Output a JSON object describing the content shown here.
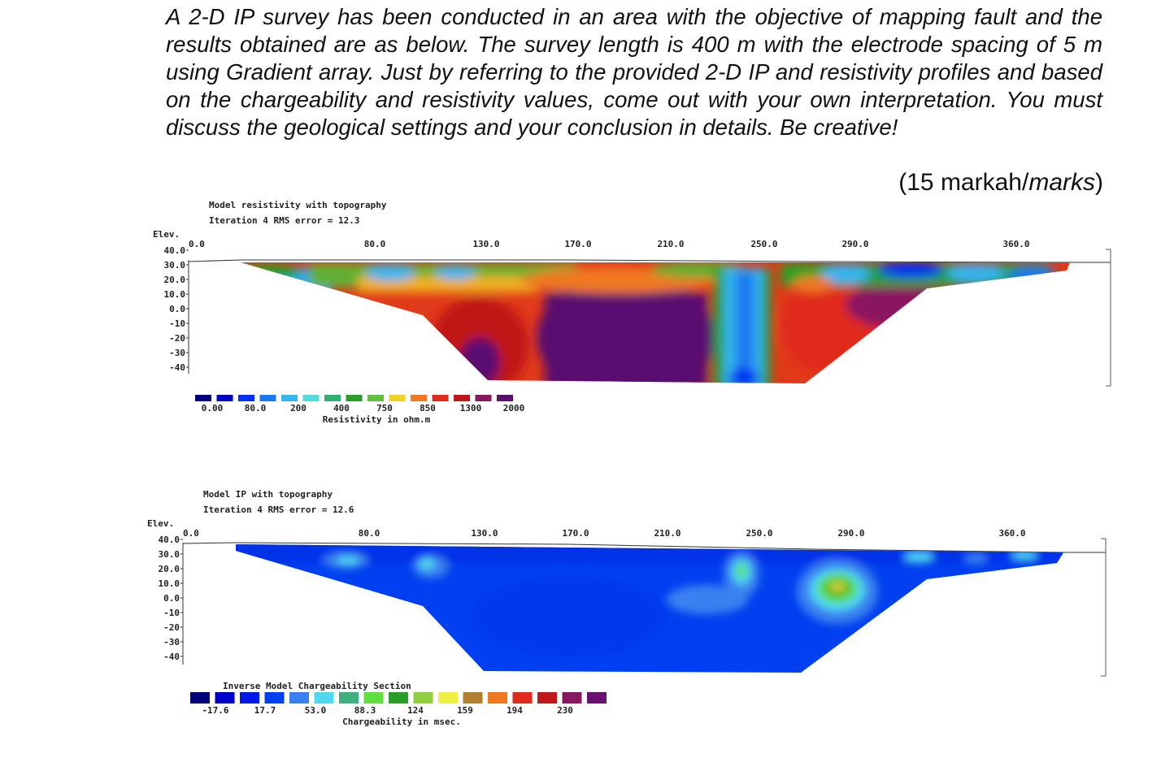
{
  "question": {
    "text": "A 2-D IP survey has been conducted in an area with the objective of mapping fault and the results obtained are as below. The survey length is 400 m with the electrode spacing of 5 m using Gradient array. Just by referring to the provided 2-D IP and resistivity profiles and based on the chargeability and resistivity values, come out with your own interpretation. You must discuss the geological settings and your conclusion in details. Be creative!",
    "marks_prefix": "(15 markah/",
    "marks_italic": "marks",
    "marks_suffix": ")"
  },
  "resistivity_section": {
    "title": "Model resistivity with topography",
    "iteration": "Iteration 4 RMS error = 12.3",
    "elev_label": "Elev.",
    "elev_ticks": [
      "40.0",
      "30.0",
      "20.0",
      "10.0",
      "0.0",
      "-10",
      "-20",
      "-30",
      "-40"
    ],
    "x_ticks": [
      "0.0",
      "80.0",
      "130.0",
      "170.0",
      "210.0",
      "250.0",
      "290.0",
      "360.0"
    ],
    "legend_values": [
      "0.00",
      "80.0",
      "200",
      "400",
      "750",
      "850",
      "1300",
      "2000"
    ],
    "legend_label": "Resistivity in ohm.m",
    "legend_colors": [
      "#00007a",
      "#0000c8",
      "#0030f0",
      "#1a78f0",
      "#34b4f0",
      "#50dcd8",
      "#30b070",
      "#28a028",
      "#60c040",
      "#f0d020",
      "#f07820",
      "#e02a1a",
      "#c01818",
      "#8a1860",
      "#5a1070"
    ]
  },
  "ip_section": {
    "title": "Model IP with topography",
    "iteration": "Iteration 4 RMS error = 12.6",
    "elev_label": "Elev.",
    "elev_ticks": [
      "40.0",
      "30.0",
      "20.0",
      "10.0",
      "0.0",
      "-10",
      "-20",
      "-30",
      "-40"
    ],
    "x_ticks": [
      "0.0",
      "80.0",
      "130.0",
      "170.0",
      "210.0",
      "250.0",
      "290.0",
      "360.0"
    ],
    "legend_title": "Inverse Model Chargeability Section",
    "legend_values": [
      "-17.6",
      "17.7",
      "53.0",
      "88.3",
      "124",
      "159",
      "194",
      "230"
    ],
    "legend_label": "Chargeability in msec.",
    "legend_colors": [
      "#00007a",
      "#0000c8",
      "#0018e8",
      "#0040f0",
      "#3a80f0",
      "#50d8f0",
      "#40b080",
      "#60e040",
      "#28a028",
      "#90d040",
      "#f0f040",
      "#b08030",
      "#f07820",
      "#e02a1a",
      "#c01818",
      "#8a1860",
      "#6a1070"
    ]
  }
}
